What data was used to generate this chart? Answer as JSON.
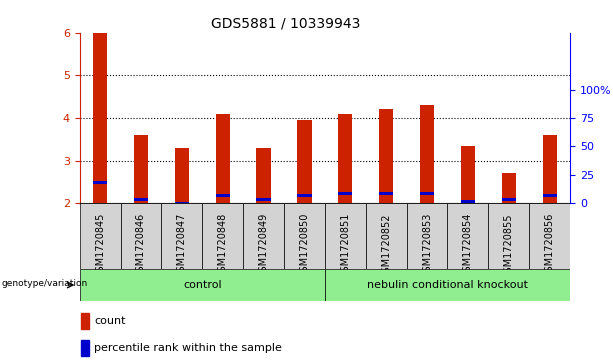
{
  "title": "GDS5881 / 10339943",
  "samples": [
    "GSM1720845",
    "GSM1720846",
    "GSM1720847",
    "GSM1720848",
    "GSM1720849",
    "GSM1720850",
    "GSM1720851",
    "GSM1720852",
    "GSM1720853",
    "GSM1720854",
    "GSM1720855",
    "GSM1720856"
  ],
  "count_values": [
    6.0,
    3.6,
    3.3,
    4.1,
    3.3,
    3.95,
    4.1,
    4.2,
    4.3,
    3.35,
    2.7,
    3.6
  ],
  "percentile_values": [
    2.48,
    2.08,
    2.0,
    2.18,
    2.08,
    2.18,
    2.22,
    2.22,
    2.22,
    2.05,
    2.08,
    2.18
  ],
  "ymin": 2.0,
  "ymax": 6.0,
  "yticks": [
    2,
    3,
    4,
    5,
    6
  ],
  "right_yticks": [
    0,
    25,
    50,
    75,
    100
  ],
  "right_ytick_positions": [
    2.0,
    2.667,
    3.333,
    4.0,
    4.667
  ],
  "bar_color": "#cc2200",
  "blue_color": "#0000cc",
  "control_label": "control",
  "knockout_label": "nebulin conditional knockout",
  "genotype_label": "genotype/variation",
  "control_bg": "#90ee90",
  "knockout_bg": "#90ee90",
  "tick_bg": "#d3d3d3",
  "legend_count": "count",
  "legend_percentile": "percentile rank within the sample",
  "bar_width": 0.35,
  "title_fontsize": 10,
  "label_fontsize": 8,
  "tick_fontsize": 7
}
